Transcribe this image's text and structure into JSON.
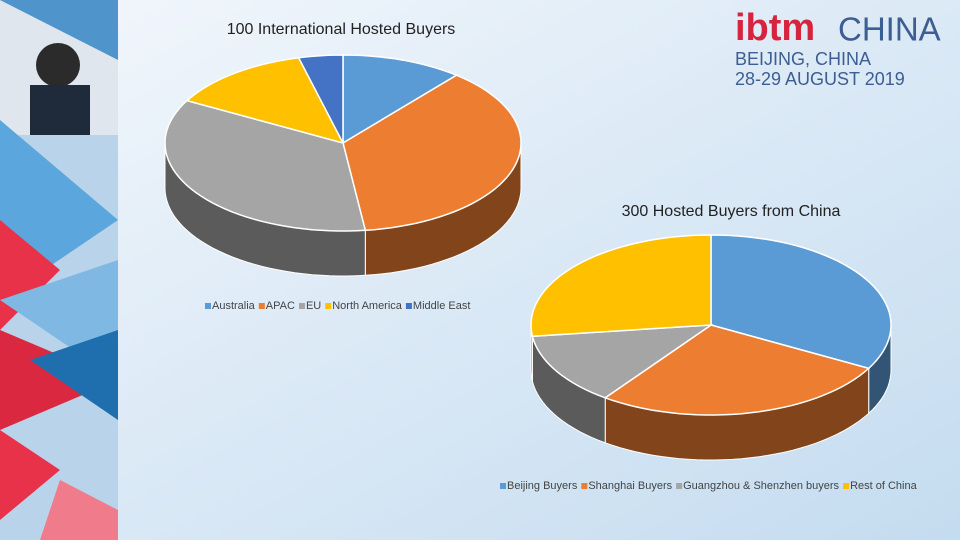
{
  "logo": {
    "brand": "ibtm",
    "region": "CHINA",
    "city": "BEIJING, CHINA",
    "dates": "28-29 AUGUST 2019"
  },
  "chart_data": [
    {
      "type": "pie3d",
      "title": "100 International Hosted Buyers",
      "categories": [
        "Australia",
        "APAC",
        "EU",
        "North America",
        "Middle East"
      ],
      "values": [
        11,
        37,
        35,
        13,
        4
      ],
      "colors": [
        "#5b9bd5",
        "#ed7d31",
        "#a5a5a5",
        "#ffc000",
        "#4472c4"
      ]
    },
    {
      "type": "pie3d",
      "title": "300 Hosted Buyers from China",
      "categories": [
        "Beijing Buyers",
        "Shanghai Buyers",
        "Guangzhou & Shenzhen buyers",
        "Rest of China"
      ],
      "values": [
        33,
        27,
        13,
        27
      ],
      "colors": [
        "#5b9bd5",
        "#ed7d31",
        "#a5a5a5",
        "#ffc000"
      ]
    }
  ]
}
